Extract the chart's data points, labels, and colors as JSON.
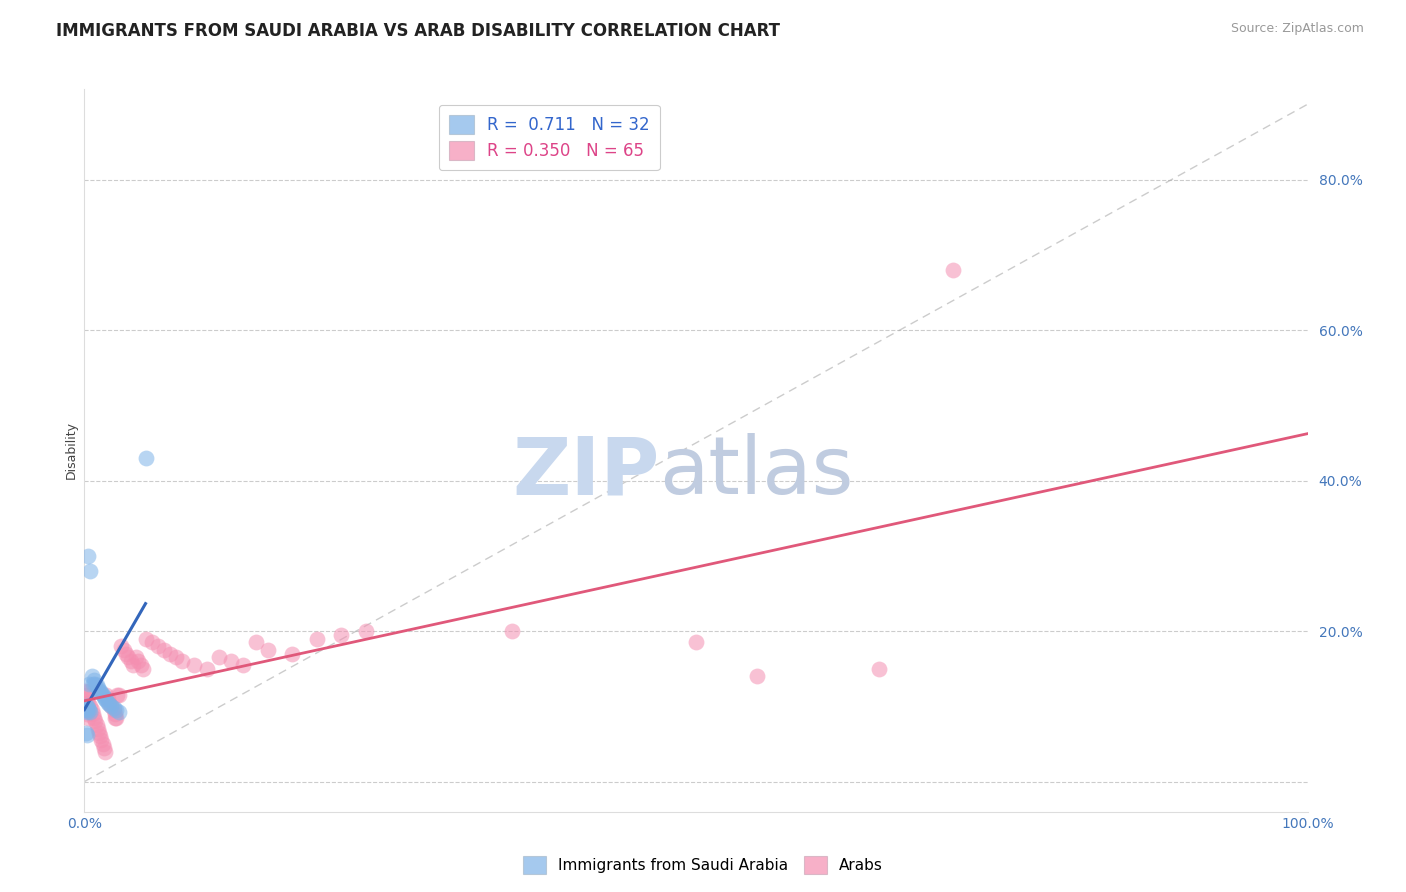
{
  "title": "IMMIGRANTS FROM SAUDI ARABIA VS ARAB DISABILITY CORRELATION CHART",
  "source_text": "Source: ZipAtlas.com",
  "ylabel": "Disability",
  "xlim": [
    0,
    1.0
  ],
  "ylim": [
    -0.04,
    0.92
  ],
  "yticks": [
    0.0,
    0.2,
    0.4,
    0.6,
    0.8
  ],
  "ytick_labels": [
    "",
    "20.0%",
    "40.0%",
    "60.0%",
    "80.0%"
  ],
  "grid_color": "#cccccc",
  "background_color": "#ffffff",
  "watermark_zip_color": "#c8d8ee",
  "watermark_atlas_color": "#c0cce0",
  "legend_R1": "0.711",
  "legend_N1": "32",
  "legend_R2": "0.350",
  "legend_N2": "65",
  "blue_color": "#7fb3e8",
  "pink_color": "#f48fb1",
  "blue_line_color": "#3366bb",
  "pink_line_color": "#e0587a",
  "blue_scatter": [
    [
      0.003,
      0.3
    ],
    [
      0.005,
      0.28
    ],
    [
      0.004,
      0.13
    ],
    [
      0.006,
      0.14
    ],
    [
      0.007,
      0.13
    ],
    [
      0.008,
      0.135
    ],
    [
      0.009,
      0.13
    ],
    [
      0.01,
      0.128
    ],
    [
      0.011,
      0.125
    ],
    [
      0.012,
      0.12
    ],
    [
      0.013,
      0.12
    ],
    [
      0.014,
      0.118
    ],
    [
      0.015,
      0.115
    ],
    [
      0.016,
      0.112
    ],
    [
      0.017,
      0.11
    ],
    [
      0.018,
      0.108
    ],
    [
      0.019,
      0.105
    ],
    [
      0.02,
      0.103
    ],
    [
      0.022,
      0.1
    ],
    [
      0.024,
      0.098
    ],
    [
      0.026,
      0.095
    ],
    [
      0.028,
      0.093
    ],
    [
      0.001,
      0.1
    ],
    [
      0.002,
      0.1
    ],
    [
      0.003,
      0.098
    ],
    [
      0.004,
      0.095
    ],
    [
      0.005,
      0.093
    ],
    [
      0.001,
      0.095
    ],
    [
      0.002,
      0.092
    ],
    [
      0.05,
      0.43
    ],
    [
      0.001,
      0.065
    ],
    [
      0.002,
      0.062
    ]
  ],
  "pink_scatter": [
    [
      0.0,
      0.12
    ],
    [
      0.001,
      0.115
    ],
    [
      0.002,
      0.11
    ],
    [
      0.003,
      0.105
    ],
    [
      0.004,
      0.12
    ],
    [
      0.005,
      0.1
    ],
    [
      0.006,
      0.095
    ],
    [
      0.007,
      0.09
    ],
    [
      0.008,
      0.085
    ],
    [
      0.009,
      0.08
    ],
    [
      0.01,
      0.075
    ],
    [
      0.011,
      0.07
    ],
    [
      0.012,
      0.065
    ],
    [
      0.013,
      0.06
    ],
    [
      0.014,
      0.055
    ],
    [
      0.015,
      0.05
    ],
    [
      0.016,
      0.045
    ],
    [
      0.017,
      0.04
    ],
    [
      0.018,
      0.115
    ],
    [
      0.019,
      0.11
    ],
    [
      0.02,
      0.105
    ],
    [
      0.022,
      0.1
    ],
    [
      0.024,
      0.095
    ],
    [
      0.025,
      0.09
    ],
    [
      0.026,
      0.085
    ],
    [
      0.028,
      0.115
    ],
    [
      0.03,
      0.18
    ],
    [
      0.032,
      0.175
    ],
    [
      0.034,
      0.17
    ],
    [
      0.036,
      0.165
    ],
    [
      0.038,
      0.16
    ],
    [
      0.04,
      0.155
    ],
    [
      0.042,
      0.165
    ],
    [
      0.044,
      0.16
    ],
    [
      0.046,
      0.155
    ],
    [
      0.048,
      0.15
    ],
    [
      0.05,
      0.19
    ],
    [
      0.055,
      0.185
    ],
    [
      0.06,
      0.18
    ],
    [
      0.065,
      0.175
    ],
    [
      0.07,
      0.17
    ],
    [
      0.075,
      0.165
    ],
    [
      0.08,
      0.16
    ],
    [
      0.09,
      0.155
    ],
    [
      0.1,
      0.15
    ],
    [
      0.11,
      0.165
    ],
    [
      0.12,
      0.16
    ],
    [
      0.13,
      0.155
    ],
    [
      0.14,
      0.185
    ],
    [
      0.15,
      0.175
    ],
    [
      0.17,
      0.17
    ],
    [
      0.19,
      0.19
    ],
    [
      0.21,
      0.195
    ],
    [
      0.23,
      0.2
    ],
    [
      0.0,
      0.1
    ],
    [
      0.001,
      0.095
    ],
    [
      0.002,
      0.09
    ],
    [
      0.003,
      0.085
    ],
    [
      0.025,
      0.085
    ],
    [
      0.027,
      0.115
    ],
    [
      0.35,
      0.2
    ],
    [
      0.5,
      0.185
    ],
    [
      0.55,
      0.14
    ],
    [
      0.65,
      0.15
    ],
    [
      0.71,
      0.68
    ]
  ],
  "title_fontsize": 12,
  "axis_label_fontsize": 9,
  "tick_fontsize": 10,
  "source_fontsize": 9
}
